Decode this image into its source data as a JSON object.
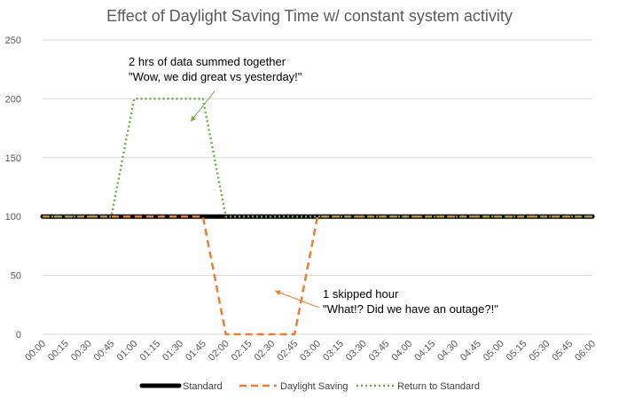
{
  "chart_data": {
    "type": "line",
    "title": "Effect of Daylight Saving Time w/ constant system activity",
    "xlabel": "",
    "ylabel": "",
    "ylim": [
      0,
      250
    ],
    "yticks": [
      0,
      50,
      100,
      150,
      200,
      250
    ],
    "grid": true,
    "legend_position": "bottom",
    "categories": [
      "00:00",
      "00:15",
      "00:30",
      "00:45",
      "01:00",
      "01:15",
      "01:30",
      "01:45",
      "02:00",
      "02:15",
      "02:30",
      "02:45",
      "03:00",
      "03:15",
      "03:30",
      "03:45",
      "04:00",
      "04:15",
      "04:30",
      "04:45",
      "05:00",
      "05:15",
      "05:30",
      "05:45",
      "06:00"
    ],
    "series": [
      {
        "name": "Standard",
        "color": "#000000",
        "style": "solid",
        "values": [
          100,
          100,
          100,
          100,
          100,
          100,
          100,
          100,
          100,
          100,
          100,
          100,
          100,
          100,
          100,
          100,
          100,
          100,
          100,
          100,
          100,
          100,
          100,
          100,
          100
        ]
      },
      {
        "name": "Daylight Saving",
        "color": "#ed7d31",
        "style": "dashed",
        "values": [
          100,
          100,
          100,
          100,
          100,
          100,
          100,
          100,
          0,
          0,
          0,
          0,
          100,
          100,
          100,
          100,
          100,
          100,
          100,
          100,
          100,
          100,
          100,
          100,
          100
        ]
      },
      {
        "name": "Return to Standard",
        "color": "#70ad47",
        "style": "dotted",
        "values": [
          100,
          100,
          100,
          100,
          200,
          200,
          200,
          200,
          100,
          100,
          100,
          100,
          100,
          100,
          100,
          100,
          100,
          100,
          100,
          100,
          100,
          100,
          100,
          100,
          100
        ]
      }
    ],
    "annotations": [
      {
        "id": "top",
        "lines": [
          "2 hrs of data summed together",
          "\"Wow, we did great vs yesterday!\""
        ],
        "color": "#70ad47"
      },
      {
        "id": "bottom",
        "lines": [
          "1 skipped hour",
          "\"What!? Did we have an outage?!\""
        ],
        "color": "#ed7d31"
      }
    ]
  }
}
